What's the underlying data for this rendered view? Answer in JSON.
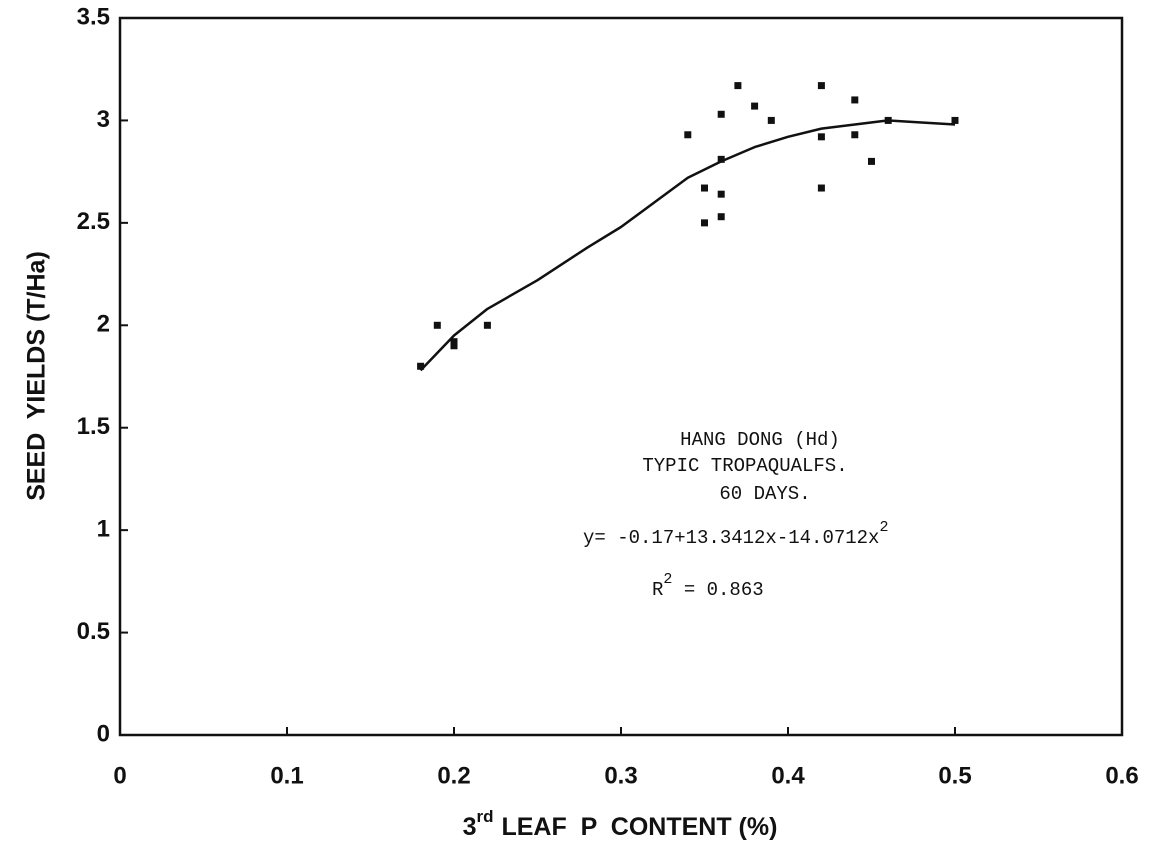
{
  "chart_data": {
    "type": "scatter",
    "xlabel": {
      "prefix": "3",
      "superscript": "rd",
      "text": "LEAF  P  CONTENT (%)"
    },
    "ylabel": "SEED  YIELDS (T/Ha)",
    "xlim": [
      0,
      0.6
    ],
    "xticks": [
      0,
      0.1,
      0.2,
      0.3,
      0.4,
      0.5,
      0.6
    ],
    "ylim": [
      0,
      3.5
    ],
    "yticks": [
      0,
      0.5,
      1,
      1.5,
      2,
      2.5,
      3,
      3.5
    ],
    "grid": false,
    "series": [
      {
        "type": "scatter",
        "color": "#111111",
        "x": [
          0.18,
          0.19,
          0.2,
          0.2,
          0.22,
          0.34,
          0.35,
          0.35,
          0.36,
          0.36,
          0.36,
          0.36,
          0.37,
          0.38,
          0.39,
          0.42,
          0.42,
          0.42,
          0.44,
          0.44,
          0.45,
          0.46,
          0.5
        ],
        "values": [
          1.8,
          2.0,
          1.9,
          1.92,
          2.0,
          2.93,
          2.67,
          2.5,
          3.03,
          2.81,
          2.64,
          2.53,
          3.17,
          3.07,
          3.0,
          3.17,
          2.92,
          2.67,
          3.1,
          2.93,
          2.8,
          3.0,
          3.0
        ]
      },
      {
        "type": "line",
        "color": "#111111",
        "x": [
          0.18,
          0.2,
          0.22,
          0.25,
          0.28,
          0.3,
          0.32,
          0.34,
          0.36,
          0.38,
          0.4,
          0.42,
          0.44,
          0.46,
          0.48,
          0.5
        ],
        "values": [
          1.78,
          1.95,
          2.08,
          2.22,
          2.38,
          2.48,
          2.6,
          2.72,
          2.8,
          2.87,
          2.92,
          2.96,
          2.98,
          3.0,
          2.99,
          2.98
        ]
      }
    ],
    "annotations": [
      "HANG DONG (Hd)",
      "TYPIC TROPAQUALFS.",
      "60 DAYS."
    ],
    "equation": {
      "text": "y= -0.17+13.3412x-14.0712x",
      "superscript": "2"
    },
    "r_squared": {
      "base": "R",
      "superscript": "2",
      "text": " = 0.863"
    }
  }
}
